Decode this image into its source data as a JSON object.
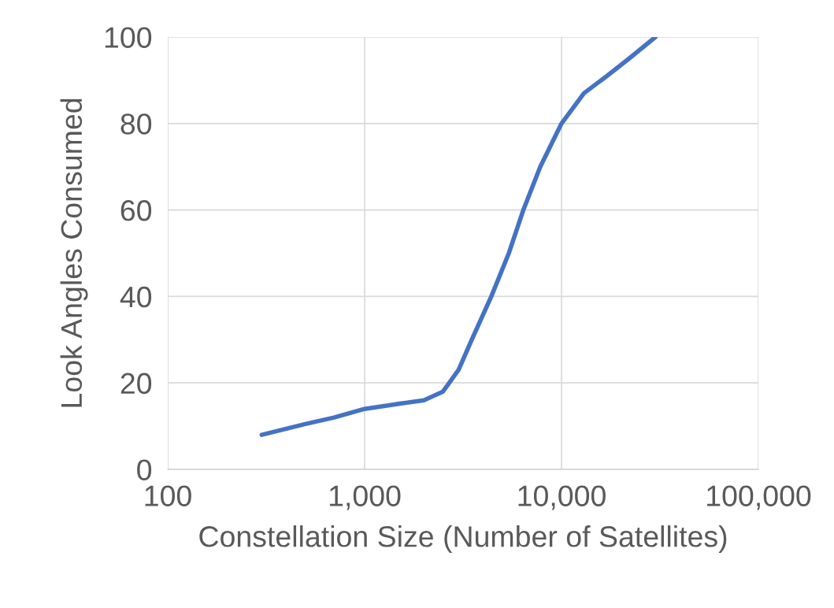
{
  "chart_data": {
    "type": "line",
    "xlabel": "Constellation Size (Number of Satellites)",
    "ylabel": "Look Angles Consumed",
    "x": [
      300,
      500,
      700,
      1000,
      1400,
      2000,
      2500,
      3000,
      3500,
      4400,
      5400,
      6400,
      7800,
      10000,
      13000,
      17000,
      22000,
      30000
    ],
    "series": [
      {
        "color": "#4472c4",
        "values": [
          8,
          10.5,
          12,
          14,
          15,
          16,
          18,
          23,
          30,
          40,
          50,
          60,
          70,
          80,
          87,
          91,
          95,
          100
        ]
      }
    ],
    "log": "x",
    "xlim": [
      100,
      100000
    ],
    "xticks": [
      {
        "value": 100,
        "label": "100"
      },
      {
        "value": 1000,
        "label": "1,000"
      },
      {
        "value": 10000,
        "label": "10,000"
      },
      {
        "value": 100000,
        "label": "100,000"
      }
    ],
    "ylim": [
      0,
      100
    ],
    "yticks": [
      0,
      20,
      40,
      60,
      80,
      100
    ],
    "grid": true,
    "marker": "none",
    "line_style": "solid"
  }
}
